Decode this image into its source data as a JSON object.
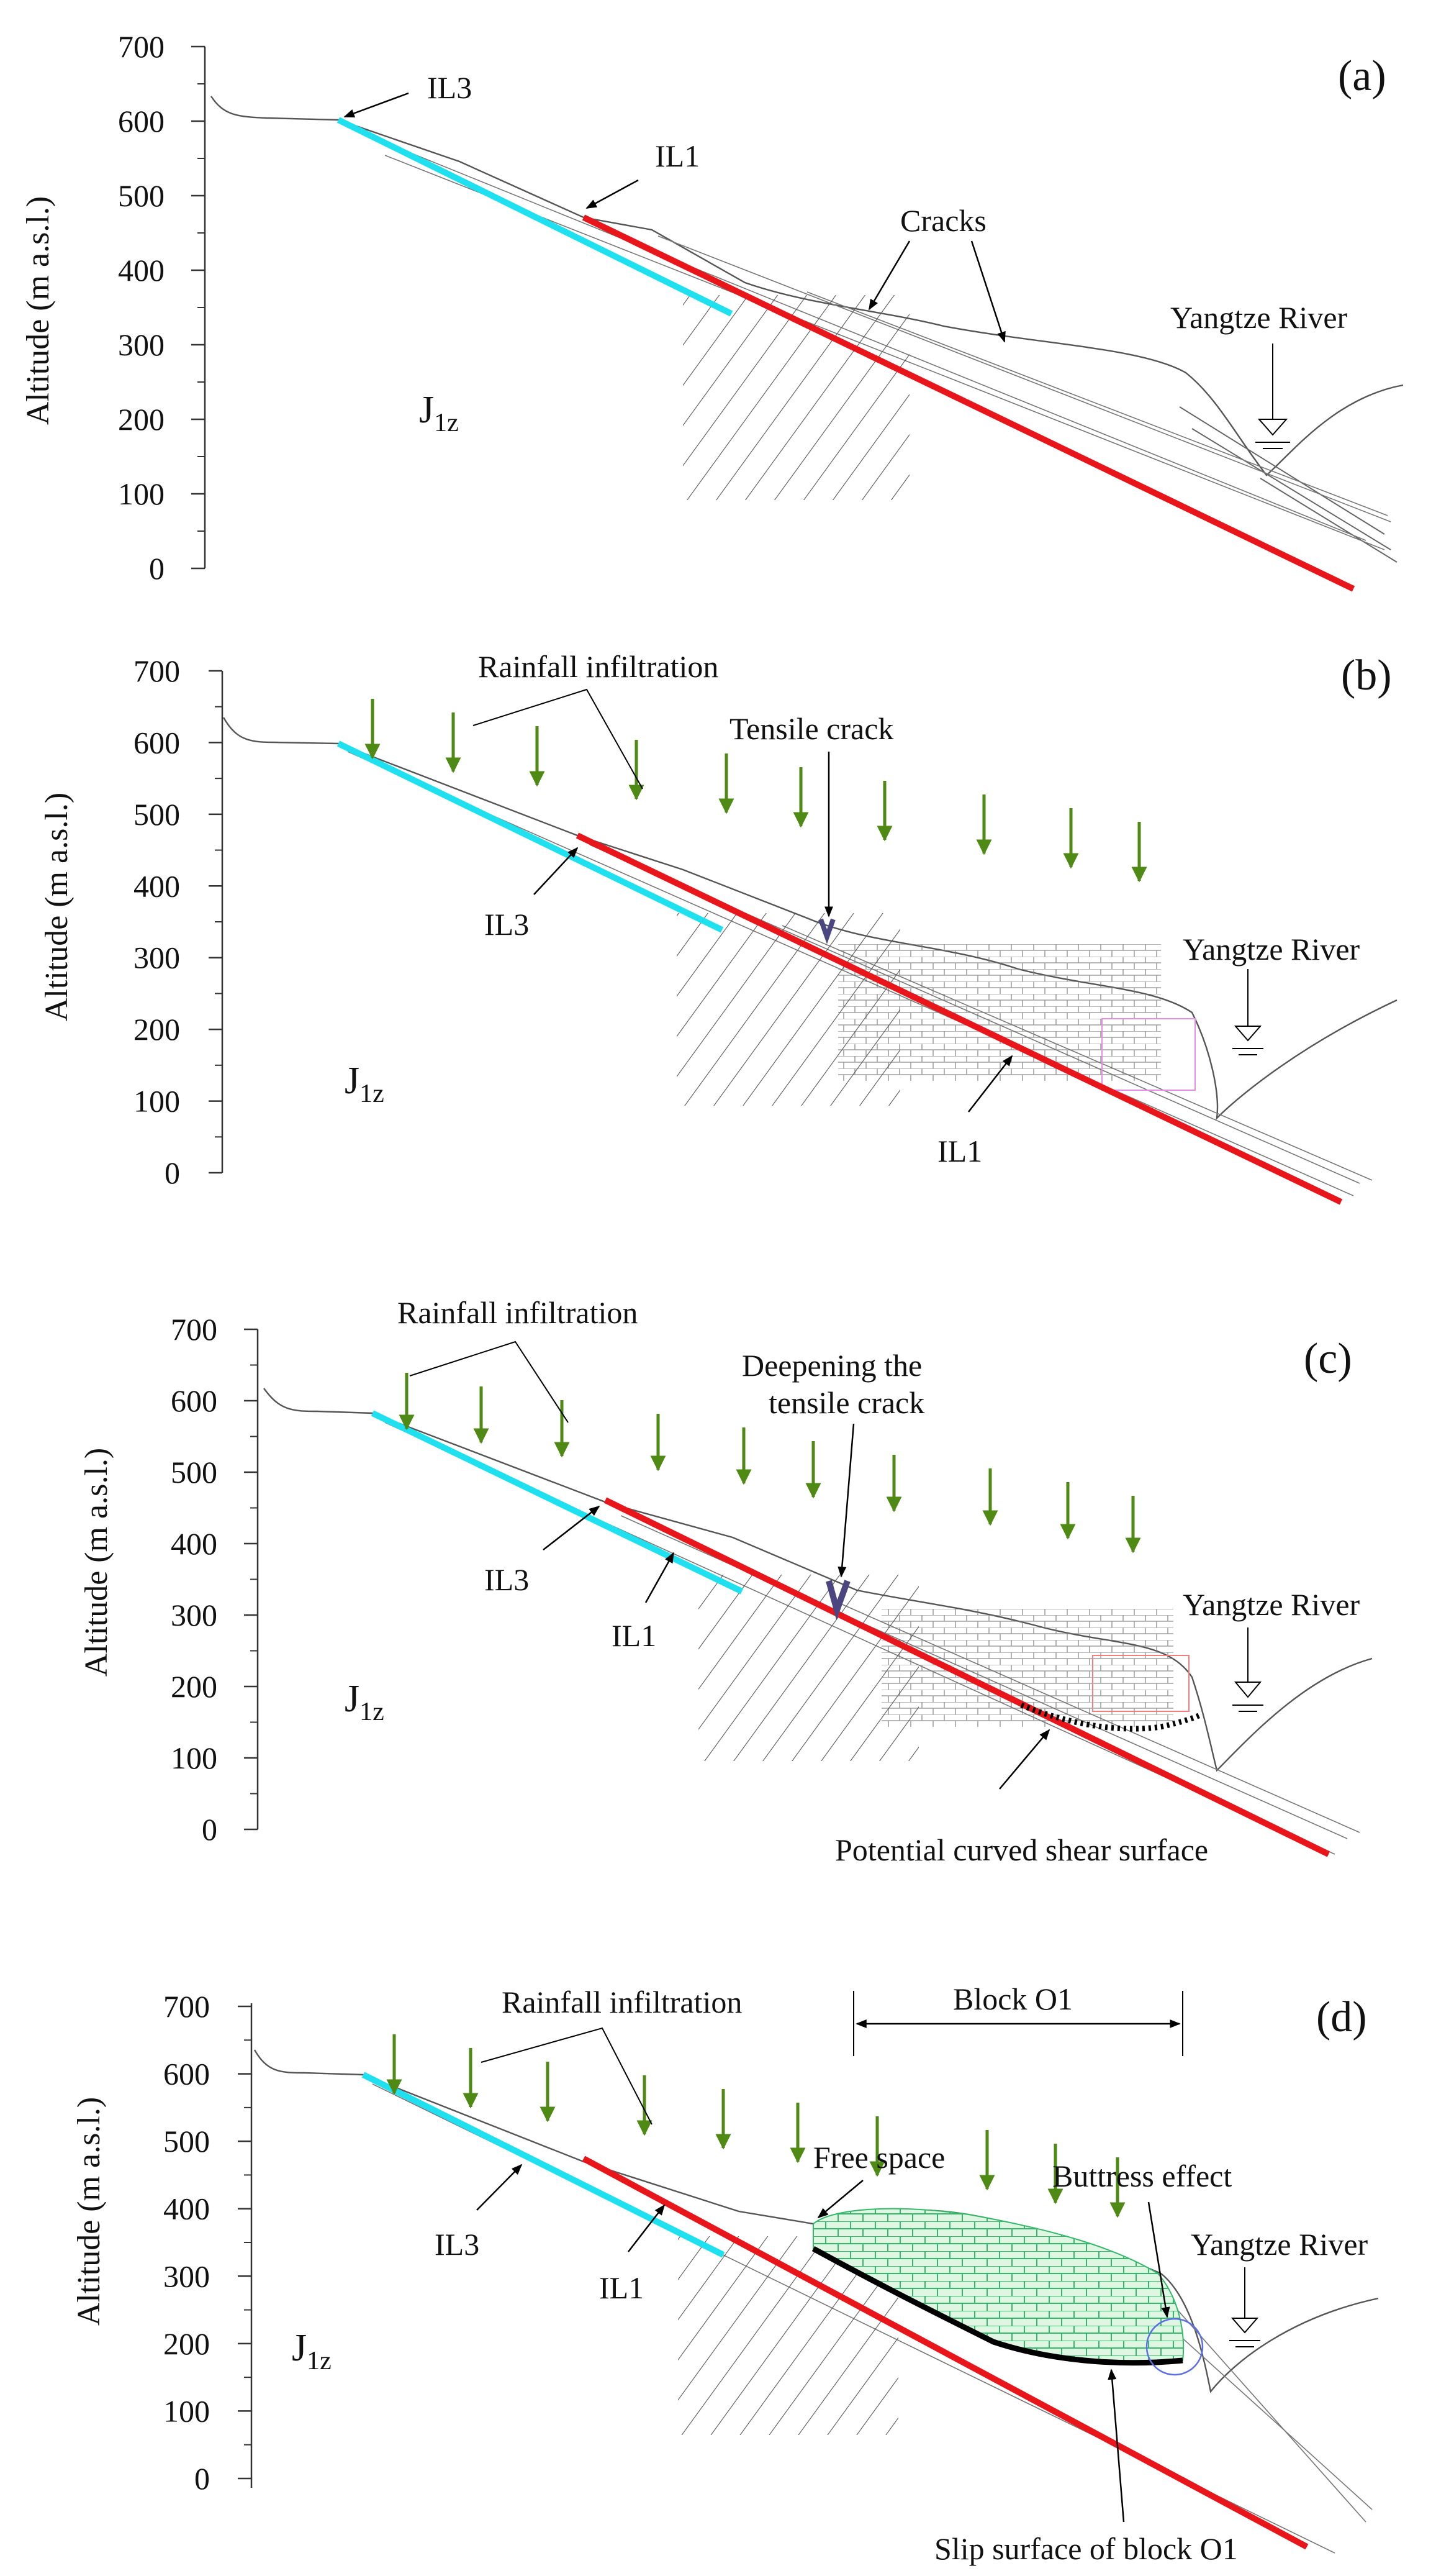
{
  "figure": {
    "y_axis_label": "Altitude (m a.s.l.)",
    "y_ticks": [
      0,
      100,
      200,
      300,
      400,
      500,
      600,
      700
    ],
    "colors": {
      "IL1_line": "#e8161b",
      "IL3_line": "#1ee0ee",
      "rain_arrow": "#4e8a14",
      "tensile_crack": "#4b4680",
      "slip_surface": "#000000",
      "block_fill": "#dff6e2",
      "block_lines": "#35b86a",
      "pink_box": "#e98be8",
      "red_box": "#f08080",
      "blue_circle": "#5b6ee6"
    },
    "panels": [
      {
        "id": "a",
        "label": "(a)",
        "formation": "J",
        "formation_sub": "1z",
        "annotations": {
          "il3": "IL3",
          "il1": "IL1",
          "cracks": "Cracks",
          "river": "Yangtze River"
        }
      },
      {
        "id": "b",
        "label": "(b)",
        "formation": "J",
        "formation_sub": "1z",
        "annotations": {
          "rain": "Rainfall infiltration",
          "tensile": "Tensile crack",
          "il3": "IL3",
          "il1": "IL1",
          "river": "Yangtze River"
        }
      },
      {
        "id": "c",
        "label": "(c)",
        "formation": "J",
        "formation_sub": "1z",
        "annotations": {
          "rain": "Rainfall infiltration",
          "deepen1": "Deepening the",
          "deepen2": "tensile crack",
          "il3": "IL3",
          "il1": "IL1",
          "river": "Yangtze River",
          "shear": "Potential curved shear surface"
        }
      },
      {
        "id": "d",
        "label": "(d)",
        "formation": "J",
        "formation_sub": "1z",
        "annotations": {
          "rain": "Rainfall infiltration",
          "block": "Block O1",
          "free": "Free space",
          "buttress": "Buttress effect",
          "river": "Yangtze River",
          "il3": "IL3",
          "il1": "IL1",
          "slip": "Slip surface of block O1"
        }
      }
    ]
  }
}
